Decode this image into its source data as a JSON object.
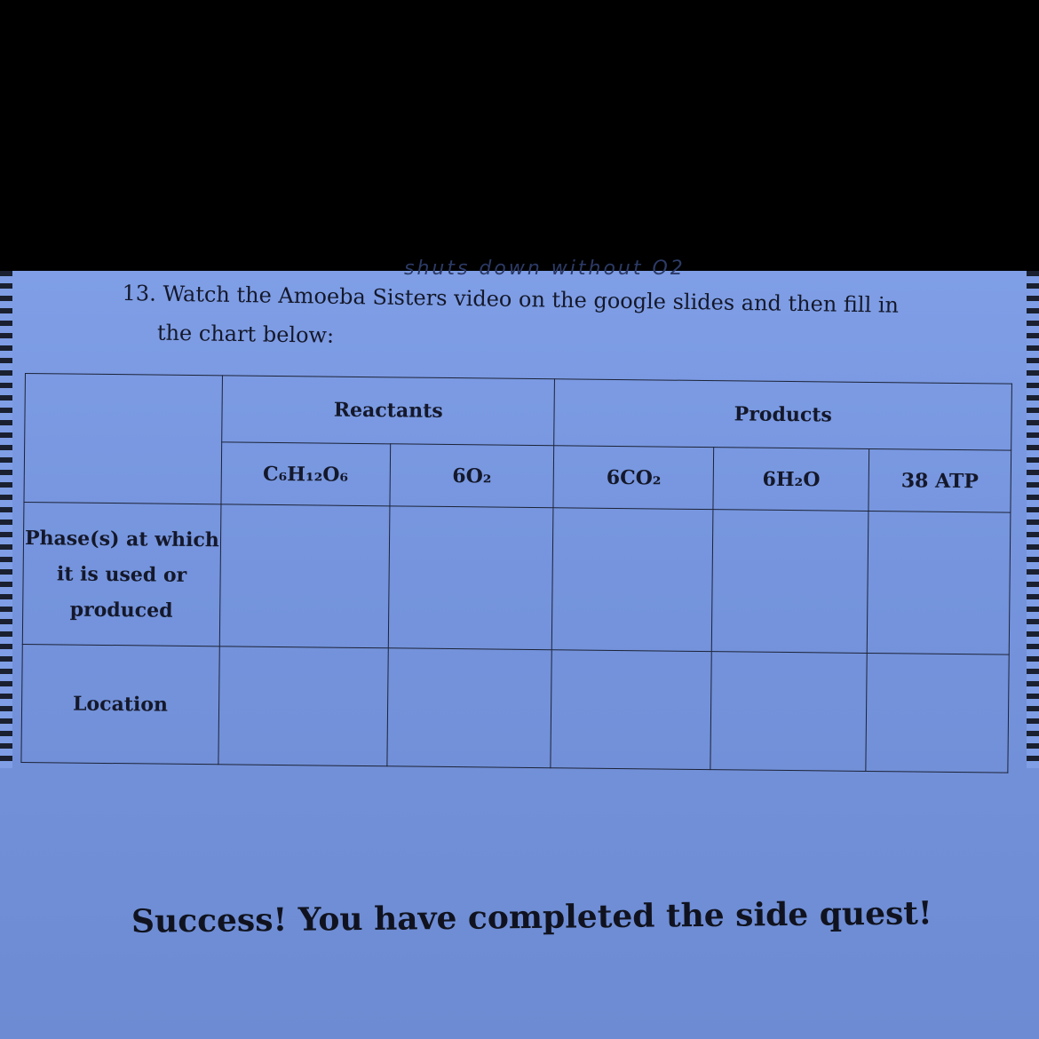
{
  "handwriting_top": "shuts down without O2",
  "question": {
    "line1": "13. Watch the Amoeba Sisters video on the google slides and then fill in",
    "line2": "the chart below:"
  },
  "table": {
    "group_headers": {
      "reactants": "Reactants",
      "products": "Products"
    },
    "columns": [
      "C₆H₁₂O₆",
      "6O₂",
      "6CO₂",
      "6H₂O",
      "38 ATP"
    ],
    "rows": [
      {
        "label": "Phase(s) at which it is used or produced",
        "cells": [
          "",
          "",
          "",
          "",
          ""
        ]
      },
      {
        "label": "Location",
        "cells": [
          "",
          "",
          "",
          "",
          ""
        ]
      }
    ]
  },
  "success_message": "Success! You have completed the side quest!"
}
